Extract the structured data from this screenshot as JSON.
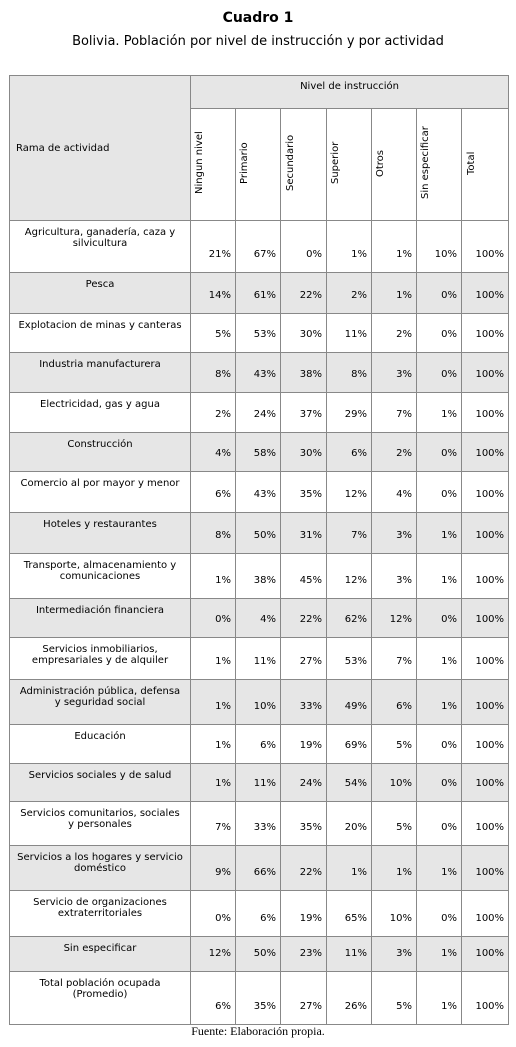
{
  "header": {
    "title": "Cuadro 1",
    "subtitle": "Bolivia. Población por nivel de instrucción y por actividad"
  },
  "table": {
    "row_header": "Rama de actividad",
    "group_header": "Nivel de instrucción",
    "columns": [
      "Ningun nivel",
      "Primario",
      "Secundario",
      "Superior",
      "Otros",
      "Sin especificar",
      "Total"
    ],
    "rows": [
      [
        "Agricultura, ganadería, caza y silvicultura",
        "21%",
        "67%",
        "0%",
        "1%",
        "1%",
        "10%",
        "100%"
      ],
      [
        "Pesca",
        "14%",
        "61%",
        "22%",
        "2%",
        "1%",
        "0%",
        "100%"
      ],
      [
        "Explotacion de minas y canteras",
        "5%",
        "53%",
        "30%",
        "11%",
        "2%",
        "0%",
        "100%"
      ],
      [
        "Industria manufacturera",
        "8%",
        "43%",
        "38%",
        "8%",
        "3%",
        "0%",
        "100%"
      ],
      [
        "Electricidad, gas y agua",
        "2%",
        "24%",
        "37%",
        "29%",
        "7%",
        "1%",
        "100%"
      ],
      [
        "Construcción",
        "4%",
        "58%",
        "30%",
        "6%",
        "2%",
        "0%",
        "100%"
      ],
      [
        "Comercio al por mayor y menor",
        "6%",
        "43%",
        "35%",
        "12%",
        "4%",
        "0%",
        "100%"
      ],
      [
        "Hoteles y restaurantes",
        "8%",
        "50%",
        "31%",
        "7%",
        "3%",
        "1%",
        "100%"
      ],
      [
        "Transporte, almacenamiento y comunicaciones",
        "1%",
        "38%",
        "45%",
        "12%",
        "3%",
        "1%",
        "100%"
      ],
      [
        "Intermediación financiera",
        "0%",
        "4%",
        "22%",
        "62%",
        "12%",
        "0%",
        "100%"
      ],
      [
        "Servicios inmobiliarios, empresariales y de alquiler",
        "1%",
        "11%",
        "27%",
        "53%",
        "7%",
        "1%",
        "100%"
      ],
      [
        "Administración pública, defensa y seguridad social",
        "1%",
        "10%",
        "33%",
        "49%",
        "6%",
        "1%",
        "100%"
      ],
      [
        "Educación",
        "1%",
        "6%",
        "19%",
        "69%",
        "5%",
        "0%",
        "100%"
      ],
      [
        "Servicios sociales y de salud",
        "1%",
        "11%",
        "24%",
        "54%",
        "10%",
        "0%",
        "100%"
      ],
      [
        "Servicios comunitarios, sociales y personales",
        "7%",
        "33%",
        "35%",
        "20%",
        "5%",
        "0%",
        "100%"
      ],
      [
        "Servicios a los hogares y servicio doméstico",
        "9%",
        "66%",
        "22%",
        "1%",
        "1%",
        "1%",
        "100%"
      ],
      [
        "Servicio de organizaciones extraterritoriales",
        "0%",
        "6%",
        "19%",
        "65%",
        "10%",
        "0%",
        "100%"
      ],
      [
        "Sin especificar",
        "12%",
        "50%",
        "23%",
        "11%",
        "3%",
        "1%",
        "100%"
      ],
      [
        "Total población ocupada (Promedio)",
        "6%",
        "35%",
        "27%",
        "26%",
        "5%",
        "1%",
        "100%"
      ]
    ]
  },
  "footer": {
    "source": "Fuente: Elaboración propia."
  }
}
